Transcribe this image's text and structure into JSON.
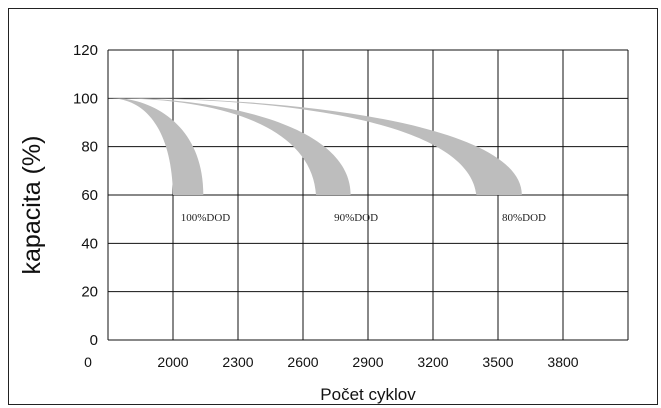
{
  "chart_data": {
    "type": "area",
    "title": "",
    "xlabel": "Počet cyklov",
    "ylabel": "kapacita (%)",
    "x_origin_label": "0",
    "xticks": [
      2000,
      2300,
      2600,
      2900,
      3200,
      3500,
      3800
    ],
    "xlim": [
      1700,
      4100
    ],
    "yticks": [
      0,
      20,
      40,
      60,
      80,
      100,
      120
    ],
    "ylim": [
      0,
      120
    ],
    "grid": true,
    "series": [
      {
        "name": "100%DOD",
        "fill": "#bdbdbd",
        "start": [
          1700,
          100
        ],
        "end_range": [
          2000,
          2140
        ],
        "end_value": 60
      },
      {
        "name": "90%DOD",
        "fill": "#bdbdbd",
        "start": [
          1700,
          100
        ],
        "end_range": [
          2660,
          2820
        ],
        "end_value": 60
      },
      {
        "name": "80%DOD",
        "fill": "#bdbdbd",
        "start": [
          1700,
          100
        ],
        "end_range": [
          3400,
          3610
        ],
        "end_value": 60
      }
    ],
    "colors": {
      "frame": "#222222",
      "grid": "#111111",
      "band": "#bdbdbd"
    }
  }
}
